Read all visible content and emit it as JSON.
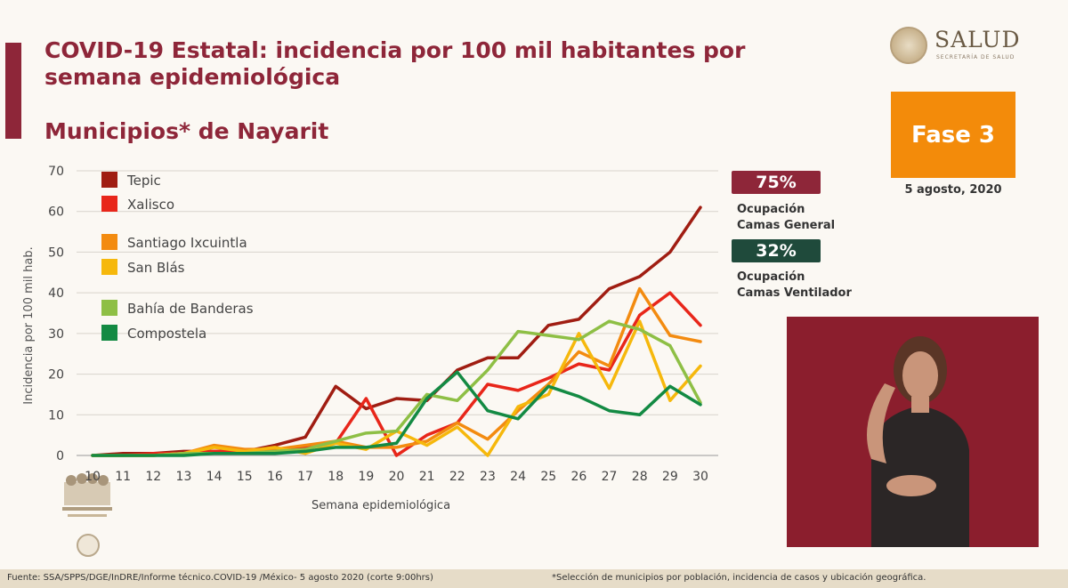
{
  "header": {
    "title": "COVID-19 Estatal: incidencia por 100 mil habitantes por semana epidemiológica",
    "subtitle": "Municipios* de Nayarit"
  },
  "logo": {
    "word": "SALUD",
    "sub": "SECRETARÍA DE SALUD"
  },
  "phase": {
    "label": "Fase 3",
    "date": "5 agosto, 2020",
    "color": "#f38b0a"
  },
  "occupancy": {
    "general": {
      "value": "75%",
      "label_line1": "Ocupación",
      "label_line2": "Camas General",
      "color": "#8e2639"
    },
    "ventilator": {
      "value": "32%",
      "label_line1": "Ocupación",
      "label_line2": "Camas Ventilador",
      "color": "#1f4a3b"
    }
  },
  "footer": {
    "source": "Fuente: SSA/SPPS/DGE/InDRE/Informe técnico.COVID-19 /México- 5 agosto 2020 (corte 9:00hrs)",
    "note": "*Selección de municipios por población, incidencia de casos y ubicación geográfica."
  },
  "chart_data": {
    "type": "line",
    "xlabel": "Semana epidemiológica",
    "ylabel": "Incidencia por 100 mil hab.",
    "x": [
      10,
      11,
      12,
      13,
      14,
      15,
      16,
      17,
      18,
      19,
      20,
      21,
      22,
      23,
      24,
      25,
      26,
      27,
      28,
      29,
      30
    ],
    "ylim": [
      0,
      70
    ],
    "yticks": [
      0,
      10,
      20,
      30,
      40,
      50,
      60,
      70
    ],
    "grid": true,
    "legend_position": "top-left",
    "series": [
      {
        "name": "Tepic",
        "color": "#a01d12",
        "values": [
          0,
          0.5,
          0.5,
          1,
          1,
          1,
          2.5,
          4.5,
          17,
          11.5,
          14,
          13.5,
          21,
          24,
          24,
          32,
          33.5,
          41,
          44,
          50,
          61
        ]
      },
      {
        "name": "Xalisco",
        "color": "#e8261a",
        "values": [
          0,
          0,
          0.5,
          0.5,
          1,
          1,
          1,
          2,
          3,
          14,
          0,
          5,
          8,
          17.5,
          16,
          19,
          22.5,
          21,
          34.5,
          40,
          32
        ]
      },
      {
        "name": "Santiago Ixcuintla",
        "color": "#f38b10",
        "values": [
          0,
          0,
          0,
          0.5,
          2.5,
          1.5,
          1.5,
          2.5,
          3.5,
          2,
          2,
          3.5,
          8,
          4,
          11,
          17.5,
          25.5,
          22,
          41,
          29.5,
          28
        ]
      },
      {
        "name": "San Blás",
        "color": "#f6b80c",
        "values": [
          0,
          0,
          0,
          0.5,
          2,
          1,
          2,
          0.5,
          3,
          1.5,
          6,
          2.5,
          7,
          0,
          12,
          15,
          30,
          16.5,
          33,
          13.5,
          22
        ]
      },
      {
        "name": "Bahía de Banderas",
        "color": "#8ebf45",
        "values": [
          0,
          0,
          0,
          0.5,
          0.5,
          0.5,
          1,
          1.5,
          3.5,
          5.5,
          6,
          15,
          13.5,
          21,
          30.5,
          29.5,
          28.5,
          33,
          31,
          27,
          13
        ]
      },
      {
        "name": "Compostela",
        "color": "#138a43",
        "values": [
          0,
          0,
          0,
          0,
          0.5,
          0.5,
          0.5,
          1,
          2,
          2,
          3,
          14,
          20.5,
          11,
          9,
          17,
          14.5,
          11,
          10,
          17,
          12.5
        ]
      }
    ]
  }
}
